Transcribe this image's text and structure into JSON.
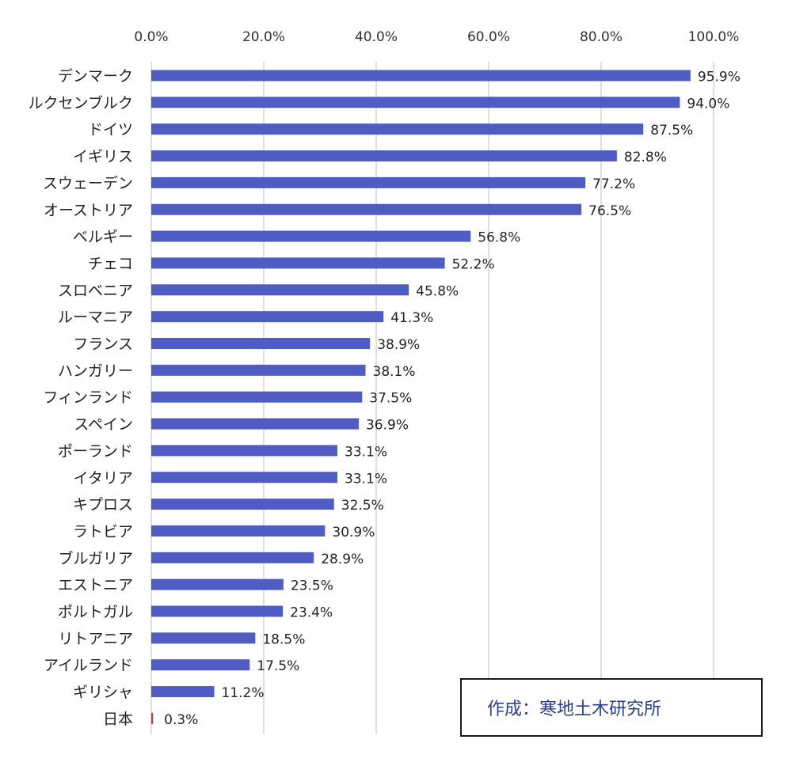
{
  "chart_data": {
    "type": "bar",
    "orientation": "horizontal",
    "categories": [
      "デンマーク",
      "ルクセンブルク",
      "ドイツ",
      "イギリス",
      "スウェーデン",
      "オーストリア",
      "ベルギー",
      "チェコ",
      "スロベニア",
      "ルーマニア",
      "フランス",
      "ハンガリー",
      "フィンランド",
      "スペイン",
      "ポーランド",
      "イタリア",
      "キプロス",
      "ラトビア",
      "ブルガリア",
      "エストニア",
      "ポルトガル",
      "リトアニア",
      "アイルランド",
      "ギリシャ",
      "日本"
    ],
    "values": [
      95.9,
      94.0,
      87.5,
      82.8,
      77.2,
      76.5,
      56.8,
      52.2,
      45.8,
      41.3,
      38.9,
      38.1,
      37.5,
      36.9,
      33.1,
      33.1,
      32.5,
      30.9,
      28.9,
      23.5,
      23.4,
      18.5,
      17.5,
      11.2,
      0.3
    ],
    "value_labels": [
      "95.9%",
      "94.0%",
      "87.5%",
      "82.8%",
      "77.2%",
      "76.5%",
      "56.8%",
      "52.2%",
      "45.8%",
      "41.3%",
      "38.9%",
      "38.1%",
      "37.5%",
      "36.9%",
      "33.1%",
      "33.1%",
      "32.5%",
      "30.9%",
      "28.9%",
      "23.5%",
      "23.4%",
      "18.5%",
      "17.5%",
      "11.2%",
      "0.3%"
    ],
    "xlim": [
      0,
      100
    ],
    "x_ticks": [
      0,
      20,
      40,
      60,
      80,
      100
    ],
    "x_tick_labels": [
      "0.0%",
      "20.0%",
      "40.0%",
      "60.0%",
      "80.0%",
      "100.0%"
    ],
    "x_axis_position": "top",
    "grid": true,
    "title": "",
    "xlabel": "",
    "ylabel": ""
  },
  "colors": {
    "bar": "#4f5cc3",
    "highlight_bar": "#c0392b",
    "grid": "#bfbfbf",
    "credit_text": "#2b3f8c"
  },
  "credit": "作成：寒地土木研究所"
}
